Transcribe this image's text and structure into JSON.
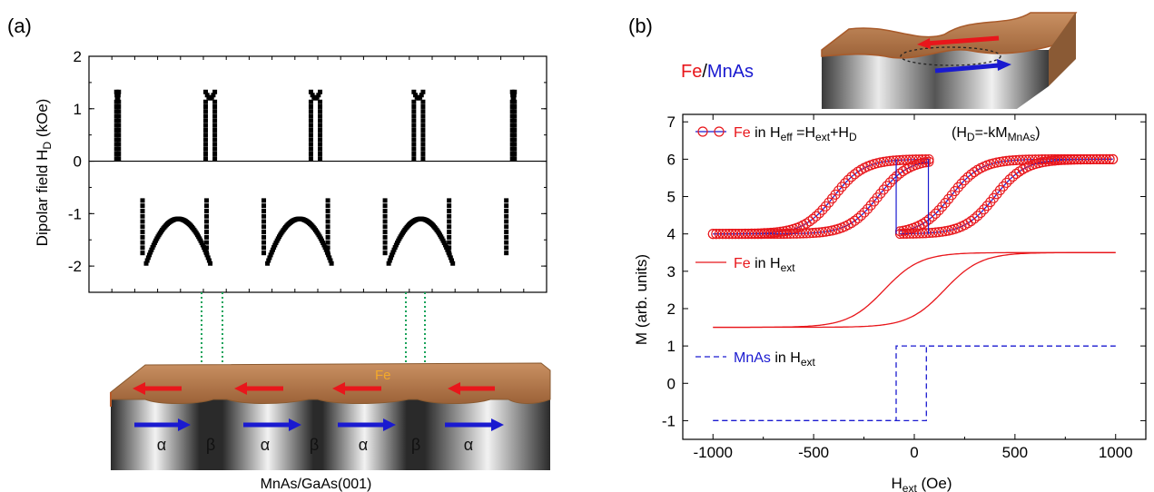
{
  "panels": {
    "a_label": "(a)",
    "b_label": "(b)"
  },
  "colors": {
    "fe": "#e8161b",
    "mnas": "#1a1ad0",
    "fe_layer": "#b87a4b",
    "dotted_guides": "#19a35a",
    "fe_arrow": "#e8161b",
    "mnas_arrow": "#1a1ad0",
    "fe_text_on_sample": "#f4a92a"
  },
  "sample_a": {
    "fe_label": "Fe",
    "phase_labels": [
      "α",
      "β",
      "α",
      "β",
      "α",
      "β",
      "α"
    ],
    "caption": "MnAs/GaAs(001)"
  },
  "sample_b": {
    "legend_fe": "Fe",
    "legend_sep": "/",
    "legend_mnas": "MnAs"
  },
  "chart_data": [
    {
      "id": "a",
      "type": "scatter",
      "ylabel_main": "Dipolar field H",
      "ylabel_sub": "D",
      "ylabel_unit": " (kOe)",
      "ylim": [
        -2.5,
        2.0
      ],
      "yticks": [
        -2,
        -1,
        0,
        1,
        2
      ],
      "yticklabels": [
        "-2",
        "-1",
        "0",
        "1",
        "2"
      ],
      "xlim": [
        0,
        1
      ],
      "zero_line": true,
      "boundaries": [
        0.125,
        0.265,
        0.39,
        0.53,
        0.655,
        0.795,
        0.92
      ],
      "alpha_segments": [
        [
          0.125,
          0.265
        ],
        [
          0.39,
          0.53
        ],
        [
          0.655,
          0.795
        ]
      ],
      "arc": {
        "edge": -1.95,
        "top": -1.1
      },
      "spike_top": 1.2,
      "spike_bottom": 0.05
    },
    {
      "id": "b",
      "type": "line",
      "xlabel_main": "H",
      "xlabel_sub": "ext",
      "xlabel_unit": " (Oe)",
      "ylabel": "M (arb. units)",
      "xlim": [
        -1150,
        1150
      ],
      "ylim": [
        -1.5,
        7.2
      ],
      "xticks": [
        -1000,
        -500,
        0,
        500,
        1000
      ],
      "xticklabels": [
        "-1000",
        "-500",
        "0",
        "500",
        "1000"
      ],
      "yticks": [
        -1,
        0,
        1,
        2,
        3,
        4,
        5,
        6,
        7
      ],
      "yticklabels": [
        "-1",
        "0",
        "1",
        "2",
        "3",
        "4",
        "5",
        "6",
        "7"
      ],
      "legend": {
        "fe_eff_fe": "Fe",
        "fe_eff_in": " in H",
        "fe_eff_sub": "eff",
        "fe_eff_eq": " =H",
        "fe_eff_sub2": "ext",
        "fe_eff_plus": "+H",
        "fe_eff_sub3": "D",
        "hd_open": "(H",
        "hd_sub": "D",
        "hd_eq": "=-kM",
        "hd_sub2": "MnAs",
        "hd_close": ")",
        "fe_ext_fe": "Fe",
        "fe_ext_in": " in H",
        "fe_ext_sub": "ext",
        "mnas_ext_mnas": "MnAs",
        "mnas_ext_in": " in H",
        "mnas_ext_sub": "ext"
      },
      "series": [
        {
          "name": "Fe in Heff =Hext+HD",
          "style": "circles-line",
          "loops": [
            {
              "center": -300,
              "low": 4,
              "high": 6
            },
            {
              "center": 300,
              "low": 4,
              "high": 6
            }
          ],
          "jump_down": [
            -90,
            -60
          ],
          "jump_up": [
            60,
            90
          ]
        },
        {
          "name": "Fe in Hext",
          "style": "solid",
          "low": 1.5,
          "high": 3.5,
          "centers": [
            -150,
            150
          ]
        },
        {
          "name": "MnAs in Hext",
          "style": "dashed",
          "low": -1,
          "high": 1,
          "switch": [
            -90,
            60
          ]
        }
      ]
    }
  ]
}
